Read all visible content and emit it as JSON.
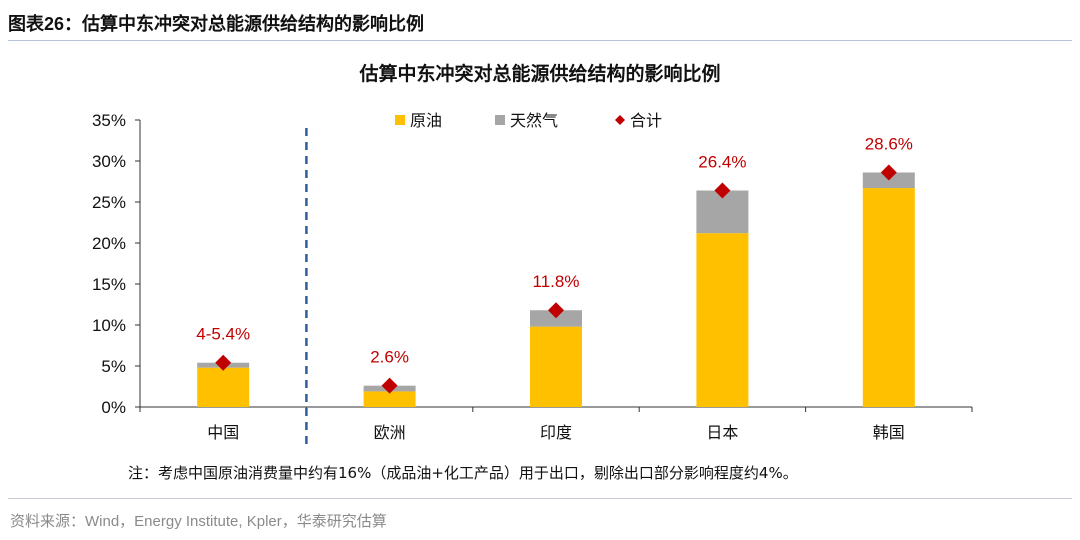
{
  "header": {
    "label": "图表26：",
    "title": "估算中东冲突对总能源供给结构的影响比例"
  },
  "chart_data": {
    "type": "bar",
    "stacked": true,
    "title": "估算中东冲突对总能源供给结构的影响比例",
    "categories": [
      "中国",
      "欧洲",
      "印度",
      "日本",
      "韩国"
    ],
    "series": [
      {
        "name": "原油",
        "color": "#FFC000",
        "values": [
          4.8,
          1.9,
          9.8,
          21.2,
          26.7
        ]
      },
      {
        "name": "天然气",
        "color": "#A6A6A6",
        "values": [
          0.6,
          0.7,
          2.0,
          5.2,
          1.9
        ]
      }
    ],
    "total": {
      "name": "合计",
      "color": "#C00000",
      "values": [
        5.4,
        2.6,
        11.8,
        26.4,
        28.6
      ]
    },
    "data_labels": [
      "4-5.4%",
      "2.6%",
      "11.8%",
      "26.4%",
      "28.6%"
    ],
    "yticks": [
      "0%",
      "5%",
      "10%",
      "15%",
      "20%",
      "25%",
      "30%",
      "35%"
    ],
    "ylim": [
      0,
      35
    ],
    "legend_position": "top",
    "divider_after_category": 0
  },
  "note": "注：考虑中国原油消费量中约有16%（成品油+化工产品）用于出口，剔除出口部分影响程度约4%。",
  "source": "资料来源：Wind，Energy Institute, Kpler，华泰研究估算"
}
